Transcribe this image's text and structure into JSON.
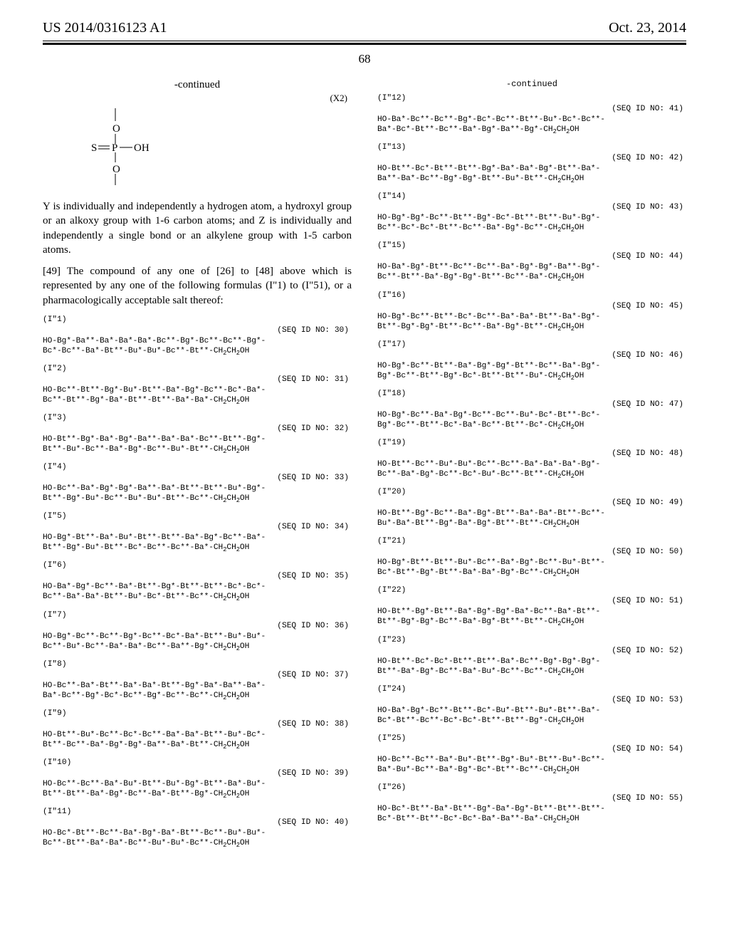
{
  "header": {
    "left": "US 2014/0316123 A1",
    "right": "Oct. 23, 2014",
    "page_number": "68"
  },
  "left_col": {
    "continued_label": "-continued",
    "x2_label": "(X2)",
    "diagram": {
      "labels": {
        "S": "S",
        "P": "P",
        "O_top": "O",
        "O_right": "OH",
        "O_bottom": "O"
      },
      "stroke": "#000"
    },
    "para1": "Y is individually and independently a hydrogen atom, a hydroxyl group or an alkoxy group with 1-6 carbon atoms; and Z is individually and independently a single bond or an alkylene group with 1-5 carbon atoms.",
    "para2": "[49] The compound of any one of [26] to [48] above which is represented by any one of the following formulas (I\"1) to (I\"51), or a pharmacologically acceptable salt thereof:",
    "seqs": [
      {
        "label": "(I\"1)",
        "idno": "(SEQ ID NO: 30)",
        "l1": "HO-Bg*-Ba**-Ba*-Ba*-Ba*-Bc**-Bg*-Bc**-Bc**-Bg*-",
        "l2": "Bc*-Bc**-Ba*-Bt**-Bu*-Bu*-Bc**-Bt**-CH₂CH₂OH"
      },
      {
        "label": "(I\"2)",
        "idno": "(SEQ ID NO: 31)",
        "l1": "HO-Bc**-Bt**-Bg*-Bu*-Bt**-Ba*-Bg*-Bc**-Bc*-Ba*-",
        "l2": "Bc**-Bt**-Bg*-Ba*-Bt**-Bt**-Ba*-Ba*-CH₂CH₂OH"
      },
      {
        "label": "(I\"3)",
        "idno": "(SEQ ID NO: 32)",
        "l1": "HO-Bt**-Bg*-Ba*-Bg*-Ba**-Ba*-Ba*-Bc**-Bt**-Bg*-",
        "l2": "Bt**-Bu*-Bc**-Ba*-Bg*-Bc**-Bu*-Bt**-CH₂CH₂OH"
      },
      {
        "label": "(I\"4)",
        "idno": "(SEQ ID NO: 33)",
        "l1": "HO-Bc**-Ba*-Bg*-Bg*-Ba**-Ba*-Bt**-Bt**-Bu*-Bg*-",
        "l2": "Bt**-Bg*-Bu*-Bc**-Bu*-Bu*-Bt**-Bc**-CH₂CH₂OH"
      },
      {
        "label": "(I\"5)",
        "idno": "(SEQ ID NO: 34)",
        "l1": "HO-Bg*-Bt**-Ba*-Bu*-Bt**-Bt**-Ba*-Bg*-Bc**-Ba*-",
        "l2": "Bt**-Bg*-Bu*-Bt**-Bc*-Bc**-Bc**-Ba*-CH₂CH₂OH"
      },
      {
        "label": "(I\"6)",
        "idno": "(SEQ ID NO: 35)",
        "l1": "HO-Ba*-Bg*-Bc**-Ba*-Bt**-Bg*-Bt**-Bt**-Bc*-Bc*-",
        "l2": "Bc**-Ba*-Ba*-Bt**-Bu*-Bc*-Bt**-Bc**-CH₂CH₂OH"
      },
      {
        "label": "(I\"7)",
        "idno": "(SEQ ID NO: 36)",
        "l1": "HO-Bg*-Bc**-Bc**-Bg*-Bc**-Bc*-Ba*-Bt**-Bu*-Bu*-",
        "l2": "Bc**-Bu*-Bc**-Ba*-Ba*-Bc**-Ba**-Bg*-CH₂CH₂OH"
      },
      {
        "label": "(I\"8)",
        "idno": "(SEQ ID NO: 37)",
        "l1": "HO-Bc**-Ba*-Bt**-Ba*-Ba*-Bt**-Bg*-Ba*-Ba**-Ba*-",
        "l2": "Ba*-Bc**-Bg*-Bc*-Bc**-Bg*-Bc**-Bc**-CH₂CH₂OH"
      },
      {
        "label": "(I\"9)",
        "idno": "(SEQ ID NO: 38)",
        "l1": "HO-Bt**-Bu*-Bc**-Bc*-Bc**-Ba*-Ba*-Bt**-Bu*-Bc*-",
        "l2": "Bt**-Bc**-Ba*-Bg*-Bg*-Ba**-Ba*-Bt**-CH₂CH₂OH"
      },
      {
        "label": "(I\"10)",
        "idno": "(SEQ ID NO: 39)",
        "l1": "HO-Bc**-Bc**-Ba*-Bu*-Bt**-Bu*-Bg*-Bt**-Ba*-Bu*-",
        "l2": "Bt**-Bt**-Ba*-Bg*-Bc**-Ba*-Bt**-Bg*-CH₂CH₂OH"
      },
      {
        "label": "(I\"11)",
        "idno": "(SEQ ID NO: 40)",
        "l1": "HO-Bc*-Bt**-Bc**-Ba*-Bg*-Ba*-Bt**-Bc**-Bu*-Bu*-",
        "l2": "Bc**-Bt**-Ba*-Ba*-Bc**-Bu*-Bu*-Bc**-CH₂CH₂OH"
      }
    ]
  },
  "right_col": {
    "continued_label": "-continued",
    "seqs": [
      {
        "label": "(I\"12)",
        "idno": "(SEQ ID NO: 41)",
        "l1": "HO-Ba*-Bc**-Bc**-Bg*-Bc*-Bc**-Bt**-Bu*-Bc*-Bc**-",
        "l2": "Ba*-Bc*-Bt**-Bc**-Ba*-Bg*-Ba**-Bg*-CH₂CH₂OH"
      },
      {
        "label": "(I\"13)",
        "idno": "(SEQ ID NO: 42)",
        "l1": "HO-Bt**-Bc*-Bt**-Bt**-Bg*-Ba*-Ba*-Bg*-Bt**-Ba*-",
        "l2": "Ba**-Ba*-Bc**-Bg*-Bg*-Bt**-Bu*-Bt**-CH₂CH₂OH"
      },
      {
        "label": "(I\"14)",
        "idno": "(SEQ ID NO: 43)",
        "l1": "HO-Bg*-Bg*-Bc**-Bt**-Bg*-Bc*-Bt**-Bt**-Bu*-Bg*-",
        "l2": "Bc**-Bc*-Bc*-Bt**-Bc**-Ba*-Bg*-Bc**-CH₂CH₂OH"
      },
      {
        "label": "(I\"15)",
        "idno": "(SEQ ID NO: 44)",
        "l1": "HO-Ba*-Bg*-Bt**-Bc**-Bc**-Ba*-Bg*-Bg*-Ba**-Bg*-",
        "l2": "Bc**-Bt**-Ba*-Bg*-Bg*-Bt**-Bc**-Ba*-CH₂CH₂OH"
      },
      {
        "label": "(I\"16)",
        "idno": "(SEQ ID NO: 45)",
        "l1": "HO-Bg*-Bc**-Bt**-Bc*-Bc**-Ba*-Ba*-Bt**-Ba*-Bg*-",
        "l2": "Bt**-Bg*-Bg*-Bt**-Bc**-Ba*-Bg*-Bt**-CH₂CH₂OH"
      },
      {
        "label": "(I\"17)",
        "idno": "(SEQ ID NO: 46)",
        "l1": "HO-Bg*-Bc**-Bt**-Ba*-Bg*-Bg*-Bt**-Bc**-Ba*-Bg*-",
        "l2": "Bg*-Bc**-Bt**-Bg*-Bc*-Bt**-Bt**-Bu*-CH₂CH₂OH"
      },
      {
        "label": "(I\"18)",
        "idno": "(SEQ ID NO: 47)",
        "l1": "HO-Bg*-Bc**-Ba*-Bg*-Bc**-Bc**-Bu*-Bc*-Bt**-Bc*-",
        "l2": "Bg*-Bc**-Bt**-Bc*-Ba*-Bc**-Bt**-Bc*-CH₂CH₂OH"
      },
      {
        "label": "(I\"19)",
        "idno": "(SEQ ID NO: 48)",
        "l1": "HO-Bt**-Bc**-Bu*-Bu*-Bc**-Bc**-Ba*-Ba*-Ba*-Bg*-",
        "l2": "Bc**-Ba*-Bg*-Bc**-Bc*-Bu*-Bc**-Bt**-CH₂CH₂OH"
      },
      {
        "label": "(I\"20)",
        "idno": "(SEQ ID NO: 49)",
        "l1": "HO-Bt**-Bg*-Bc**-Ba*-Bg*-Bt**-Ba*-Ba*-Bt**-Bc**-",
        "l2": "Bu*-Ba*-Bt**-Bg*-Ba*-Bg*-Bt**-Bt**-CH₂CH₂OH"
      },
      {
        "label": "(I\"21)",
        "idno": "(SEQ ID NO: 50)",
        "l1": "HO-Bg*-Bt**-Bt**-Bu*-Bc**-Ba*-Bg*-Bc**-Bu*-Bt**-",
        "l2": "Bc*-Bt**-Bg*-Bt**-Ba*-Ba*-Bg*-Bc**-CH₂CH₂OH"
      },
      {
        "label": "(I\"22)",
        "idno": "(SEQ ID NO: 51)",
        "l1": "HO-Bt**-Bg*-Bt**-Ba*-Bg*-Bg*-Ba*-Bc**-Ba*-Bt**-",
        "l2": "Bt**-Bg*-Bg*-Bc**-Ba*-Bg*-Bt**-Bt**-CH₂CH₂OH"
      },
      {
        "label": "(I\"23)",
        "idno": "(SEQ ID NO: 52)",
        "l1": "HO-Bt**-Bc*-Bc*-Bt**-Bt**-Ba*-Bc**-Bg*-Bg*-Bg*-",
        "l2": "Bt**-Ba*-Bg*-Bc**-Ba*-Bu*-Bc**-Bc**-CH₂CH₂OH"
      },
      {
        "label": "(I\"24)",
        "idno": "(SEQ ID NO: 53)",
        "l1": "HO-Ba*-Bg*-Bc**-Bt**-Bc*-Bu*-Bt**-Bu*-Bt**-Ba*-",
        "l2": "Bc*-Bt**-Bc**-Bc*-Bc*-Bt**-Bt**-Bg*-CH₂CH₂OH"
      },
      {
        "label": "(I\"25)",
        "idno": "(SEQ ID NO: 54)",
        "l1": "HO-Bc**-Bc**-Ba*-Bu*-Bt**-Bg*-Bu*-Bt**-Bu*-Bc**-",
        "l2": "Ba*-Bu*-Bc**-Ba*-Bg*-Bc*-Bt**-Bc**-CH₂CH₂OH"
      },
      {
        "label": "(I\"26)",
        "idno": "(SEQ ID NO: 55)",
        "l1": "HO-Bc*-Bt**-Ba*-Bt**-Bg*-Ba*-Bg*-Bt**-Bt**-Bt**-",
        "l2": "Bc*-Bt**-Bt**-Bc*-Bc*-Ba*-Ba**-Ba*-CH₂CH₂OH"
      }
    ]
  }
}
